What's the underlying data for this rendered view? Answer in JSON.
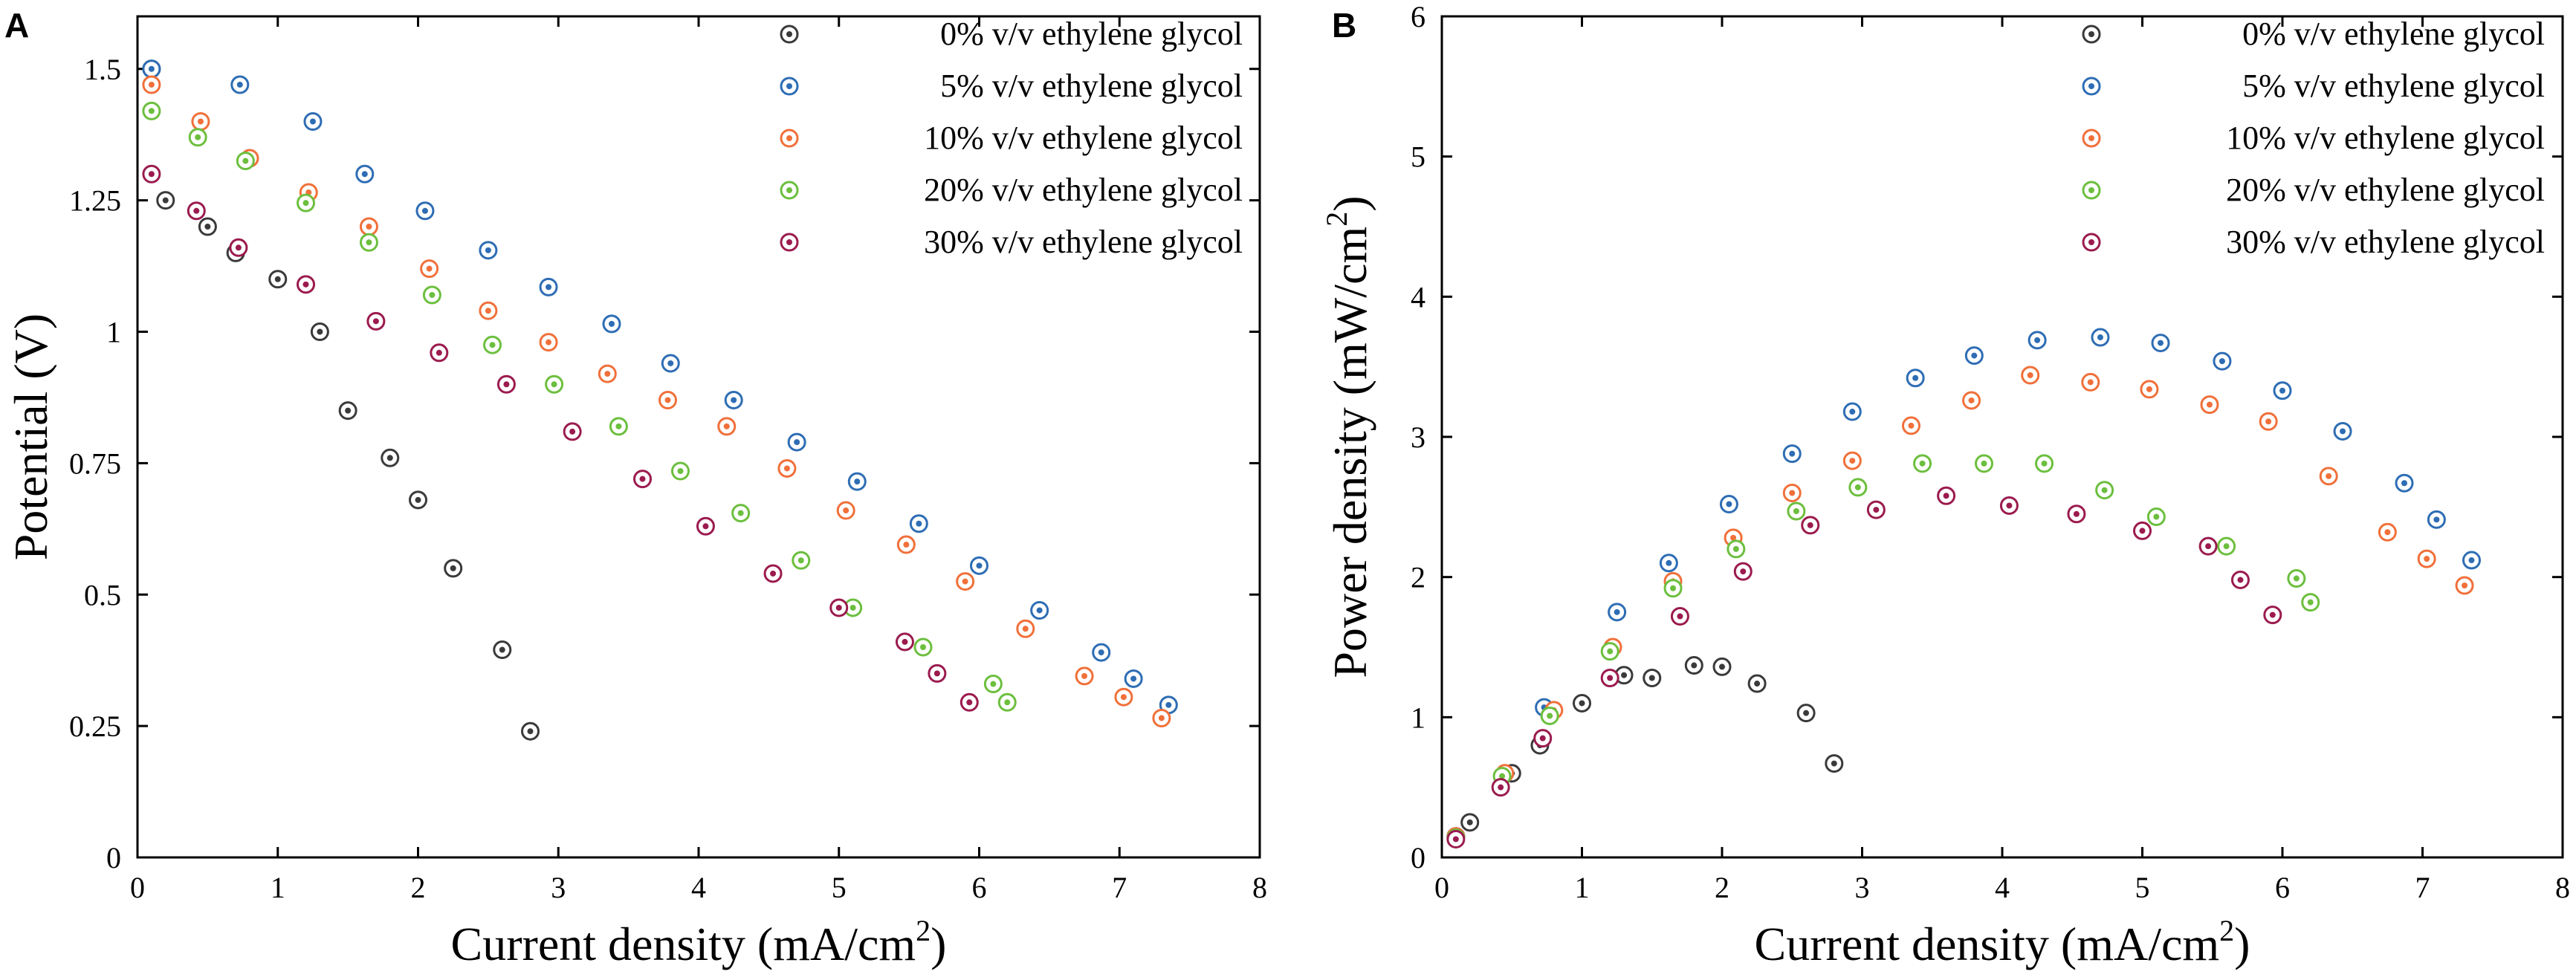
{
  "chart_data": [
    {
      "type": "scatter",
      "panel_label": "A",
      "title": "",
      "xlabel": "Current density (mA/cm",
      "xlabel_sup": "2",
      "xlabel_end": ")",
      "ylabel": "Potential (V)",
      "xlim": [
        0,
        8
      ],
      "ylim": [
        0,
        1.6
      ],
      "xticks": [
        0,
        1,
        2,
        3,
        4,
        5,
        6,
        7,
        8
      ],
      "xtick_labels": [
        "0",
        "1",
        "2",
        "3",
        "4",
        "5",
        "6",
        "7",
        "8"
      ],
      "yticks": [
        0,
        0.25,
        0.5,
        0.75,
        1,
        1.25,
        1.5
      ],
      "ytick_labels": [
        "0",
        "0.25",
        "0.5",
        "0.75",
        "1",
        "1.25",
        "1.5"
      ],
      "grid": false,
      "legend_position": "top-right",
      "series": [
        {
          "name": "0% v/v ethylene glycol",
          "color": "#3a3a3a",
          "x": [
            0.1,
            0.2,
            0.5,
            0.7,
            1.0,
            1.3,
            1.5,
            1.8,
            2.0,
            2.25,
            2.6,
            2.8
          ],
          "y": [
            1.5,
            1.25,
            1.2,
            1.15,
            1.1,
            1.0,
            0.85,
            0.76,
            0.68,
            0.55,
            0.395,
            0.24
          ]
        },
        {
          "name": "5% v/v ethylene glycol",
          "color": "#2e6db4",
          "x": [
            0.1,
            0.73,
            1.25,
            1.62,
            2.05,
            2.5,
            2.93,
            3.38,
            3.8,
            4.25,
            4.7,
            5.13,
            5.57,
            6.0,
            6.43,
            6.87,
            7.1,
            7.35
          ],
          "y": [
            1.5,
            1.47,
            1.4,
            1.3,
            1.23,
            1.155,
            1.085,
            1.015,
            0.94,
            0.87,
            0.79,
            0.715,
            0.635,
            0.555,
            0.47,
            0.39,
            0.34,
            0.29
          ]
        },
        {
          "name": "10% v/v ethylene glycol",
          "color": "#f0703a",
          "x": [
            0.1,
            0.45,
            0.8,
            1.22,
            1.65,
            2.08,
            2.5,
            2.93,
            3.35,
            3.78,
            4.2,
            4.63,
            5.05,
            5.48,
            5.9,
            6.33,
            6.75,
            7.03,
            7.3
          ],
          "y": [
            1.47,
            1.4,
            1.33,
            1.265,
            1.2,
            1.12,
            1.04,
            0.98,
            0.92,
            0.87,
            0.82,
            0.74,
            0.66,
            0.595,
            0.525,
            0.435,
            0.345,
            0.305,
            0.265
          ]
        },
        {
          "name": "20% v/v ethylene glycol",
          "color": "#6cbf3e",
          "x": [
            0.1,
            0.43,
            0.77,
            1.2,
            1.65,
            2.1,
            2.53,
            2.97,
            3.43,
            3.87,
            4.3,
            4.73,
            5.1,
            5.6,
            6.1,
            6.2
          ],
          "y": [
            1.42,
            1.37,
            1.325,
            1.245,
            1.17,
            1.07,
            0.975,
            0.9,
            0.82,
            0.735,
            0.655,
            0.565,
            0.475,
            0.4,
            0.33,
            0.295
          ]
        },
        {
          "name": "30% v/v ethylene glycol",
          "color": "#9b1b4e",
          "x": [
            0.1,
            0.42,
            0.72,
            1.2,
            1.7,
            2.15,
            2.63,
            3.1,
            3.6,
            4.05,
            4.53,
            5.0,
            5.47,
            5.7,
            5.93
          ],
          "y": [
            1.3,
            1.23,
            1.16,
            1.09,
            1.02,
            0.96,
            0.9,
            0.81,
            0.72,
            0.63,
            0.54,
            0.475,
            0.41,
            0.35,
            0.295
          ]
        }
      ]
    },
    {
      "type": "scatter",
      "panel_label": "B",
      "title": "",
      "xlabel": "Current density (mA/cm",
      "xlabel_sup": "2",
      "xlabel_end": ")",
      "ylabel": "Power density (mW/cm",
      "ylabel_sup": "2",
      "ylabel_end": ")",
      "xlim": [
        0,
        8
      ],
      "ylim": [
        0,
        6
      ],
      "xticks": [
        0,
        1,
        2,
        3,
        4,
        5,
        6,
        7,
        8
      ],
      "xtick_labels": [
        "0",
        "1",
        "2",
        "3",
        "4",
        "5",
        "6",
        "7",
        "8"
      ],
      "yticks": [
        0,
        1,
        2,
        3,
        4,
        5,
        6
      ],
      "ytick_labels": [
        "0",
        "1",
        "2",
        "3",
        "4",
        "5",
        "6"
      ],
      "grid": false,
      "legend_position": "top-right",
      "series": [
        {
          "name": "0% v/v ethylene glycol",
          "color": "#3a3a3a",
          "x": [
            0.1,
            0.2,
            0.5,
            0.7,
            1.0,
            1.3,
            1.5,
            1.8,
            2.0,
            2.25,
            2.6,
            2.8
          ],
          "y": [
            0.15,
            0.25,
            0.6,
            0.8,
            1.1,
            1.3,
            1.28,
            1.37,
            1.36,
            1.24,
            1.03,
            0.67
          ]
        },
        {
          "name": "5% v/v ethylene glycol",
          "color": "#2e6db4",
          "x": [
            0.1,
            0.73,
            1.25,
            1.62,
            2.05,
            2.5,
            2.93,
            3.38,
            3.8,
            4.25,
            4.7,
            5.13,
            5.57,
            6.0,
            6.43,
            6.87,
            7.1,
            7.35
          ],
          "y": [
            0.15,
            1.07,
            1.75,
            2.1,
            2.52,
            2.88,
            3.18,
            3.42,
            3.58,
            3.69,
            3.71,
            3.67,
            3.54,
            3.33,
            3.04,
            2.67,
            2.41,
            2.12
          ]
        },
        {
          "name": "10% v/v ethylene glycol",
          "color": "#f0703a",
          "x": [
            0.1,
            0.45,
            0.8,
            1.22,
            1.65,
            2.08,
            2.5,
            2.93,
            3.35,
            3.78,
            4.2,
            4.63,
            5.05,
            5.48,
            5.9,
            6.33,
            6.75,
            7.03,
            7.3
          ],
          "y": [
            0.15,
            0.6,
            1.05,
            1.5,
            1.97,
            2.28,
            2.6,
            2.83,
            3.08,
            3.26,
            3.44,
            3.39,
            3.34,
            3.23,
            3.11,
            2.72,
            2.32,
            2.13,
            1.94
          ]
        },
        {
          "name": "20% v/v ethylene glycol",
          "color": "#6cbf3e",
          "x": [
            0.1,
            0.43,
            0.77,
            1.2,
            1.65,
            2.1,
            2.53,
            2.97,
            3.43,
            3.87,
            4.3,
            4.73,
            5.1,
            5.6,
            6.1,
            6.2
          ],
          "y": [
            0.14,
            0.58,
            1.01,
            1.47,
            1.92,
            2.2,
            2.47,
            2.64,
            2.81,
            2.81,
            2.81,
            2.62,
            2.43,
            2.22,
            1.99,
            1.82
          ]
        },
        {
          "name": "30% v/v ethylene glycol",
          "color": "#9b1b4e",
          "x": [
            0.1,
            0.42,
            0.72,
            1.2,
            1.7,
            2.15,
            2.63,
            3.1,
            3.6,
            4.05,
            4.53,
            5.0,
            5.47,
            5.7,
            5.93
          ],
          "y": [
            0.13,
            0.5,
            0.85,
            1.28,
            1.72,
            2.04,
            2.37,
            2.48,
            2.58,
            2.51,
            2.45,
            2.33,
            2.22,
            1.98,
            1.73
          ]
        }
      ]
    }
  ]
}
